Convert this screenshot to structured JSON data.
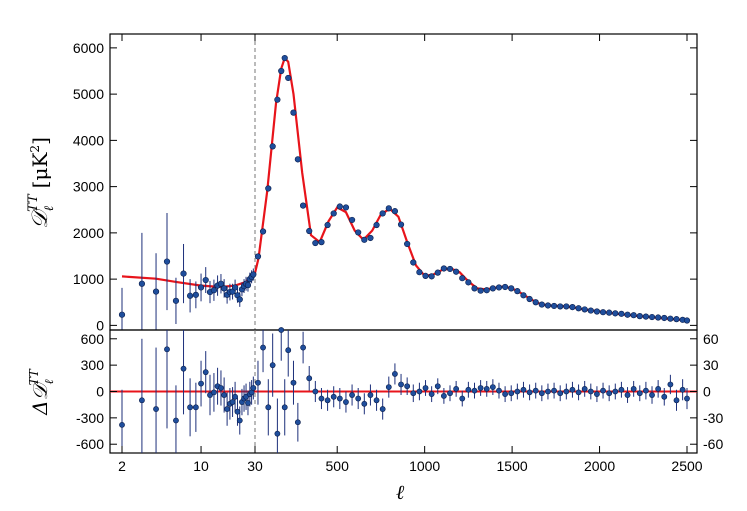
{
  "chart_data": {
    "type": "scatter",
    "top_panel": {
      "ylabel": "𝒟ℓTT [μK²]",
      "ylabel_main": "𝒟",
      "ylabel_sub": "ℓ",
      "ylabel_sup": "TT",
      "ylabel_unit": "[μK",
      "ylabel_unit_sup": "2",
      "ylabel_unit_close": "]",
      "ylim": [
        -100,
        6300
      ],
      "yticks": [
        0,
        1000,
        2000,
        3000,
        4000,
        5000,
        6000
      ],
      "ytick_labels": [
        "0",
        "1000",
        "2000",
        "3000",
        "4000",
        "5000",
        "6000"
      ],
      "model_color": "#e8141b",
      "point_color": "#1f4e9c",
      "errorbar_color": "#1c2f7a",
      "model_x": [
        2,
        4,
        6,
        10,
        15,
        20,
        25,
        30,
        50,
        100,
        150,
        180,
        200,
        220,
        250,
        300,
        350,
        400,
        450,
        500,
        550,
        600,
        650,
        700,
        750,
        800,
        850,
        900,
        950,
        1000,
        1050,
        1100,
        1150,
        1200,
        1250,
        1300,
        1350,
        1400,
        1450,
        1500,
        1550,
        1600,
        1650,
        1700,
        1750,
        1800,
        1850,
        1900,
        2000,
        2100,
        2200,
        2300,
        2400,
        2500
      ],
      "model_y": [
        1060,
        1010,
        940,
        860,
        830,
        860,
        940,
        1130,
        1450,
        2900,
        4800,
        5550,
        5780,
        5700,
        5000,
        3300,
        1950,
        1800,
        2250,
        2550,
        2450,
        2050,
        1850,
        2050,
        2400,
        2520,
        2350,
        1800,
        1300,
        1070,
        1100,
        1200,
        1230,
        1150,
        950,
        800,
        780,
        810,
        840,
        800,
        700,
        580,
        480,
        430,
        420,
        410,
        390,
        350,
        300,
        250,
        210,
        175,
        140,
        110
      ],
      "points": [
        {
          "x": 2,
          "y": 230,
          "err": 580
        },
        {
          "x": 3,
          "y": 900,
          "err": 1100
        },
        {
          "x": 4,
          "y": 730,
          "err": 830
        },
        {
          "x": 5,
          "y": 1380,
          "err": 1050
        },
        {
          "x": 6,
          "y": 530,
          "err": 500
        },
        {
          "x": 7,
          "y": 1120,
          "err": 640
        },
        {
          "x": 8,
          "y": 640,
          "err": 360
        },
        {
          "x": 9,
          "y": 660,
          "err": 290
        },
        {
          "x": 10,
          "y": 820,
          "err": 300
        },
        {
          "x": 11,
          "y": 980,
          "err": 280
        },
        {
          "x": 12,
          "y": 720,
          "err": 240
        },
        {
          "x": 13,
          "y": 760,
          "err": 230
        },
        {
          "x": 14,
          "y": 860,
          "err": 220
        },
        {
          "x": 15,
          "y": 900,
          "err": 210
        },
        {
          "x": 16,
          "y": 800,
          "err": 200
        },
        {
          "x": 17,
          "y": 660,
          "err": 190
        },
        {
          "x": 18,
          "y": 720,
          "err": 180
        },
        {
          "x": 19,
          "y": 730,
          "err": 170
        },
        {
          "x": 20,
          "y": 820,
          "err": 170
        },
        {
          "x": 21,
          "y": 650,
          "err": 160
        },
        {
          "x": 22,
          "y": 560,
          "err": 160
        },
        {
          "x": 23,
          "y": 780,
          "err": 150
        },
        {
          "x": 24,
          "y": 850,
          "err": 150
        },
        {
          "x": 25,
          "y": 900,
          "err": 150
        },
        {
          "x": 26,
          "y": 870,
          "err": 140
        },
        {
          "x": 27,
          "y": 1000,
          "err": 140
        },
        {
          "x": 28,
          "y": 1050,
          "err": 140
        },
        {
          "x": 29,
          "y": 1100,
          "err": 130
        },
        {
          "x": 47,
          "y": 1490,
          "err": 60
        },
        {
          "x": 76,
          "y": 2030,
          "err": 60
        },
        {
          "x": 106,
          "y": 2960,
          "err": 60
        },
        {
          "x": 131,
          "y": 3870,
          "err": 60
        },
        {
          "x": 158,
          "y": 4880,
          "err": 60
        },
        {
          "x": 180,
          "y": 5500,
          "err": 60
        },
        {
          "x": 200,
          "y": 5780,
          "err": 60
        },
        {
          "x": 220,
          "y": 5350,
          "err": 60
        },
        {
          "x": 250,
          "y": 4600,
          "err": 60
        },
        {
          "x": 275,
          "y": 3590,
          "err": 60
        },
        {
          "x": 305,
          "y": 2590,
          "err": 50
        },
        {
          "x": 340,
          "y": 2040,
          "err": 40
        },
        {
          "x": 375,
          "y": 1780,
          "err": 40
        },
        {
          "x": 410,
          "y": 1800,
          "err": 40
        },
        {
          "x": 445,
          "y": 2170,
          "err": 40
        },
        {
          "x": 480,
          "y": 2420,
          "err": 40
        },
        {
          "x": 515,
          "y": 2570,
          "err": 40
        },
        {
          "x": 550,
          "y": 2550,
          "err": 40
        },
        {
          "x": 585,
          "y": 2280,
          "err": 40
        },
        {
          "x": 620,
          "y": 2010,
          "err": 40
        },
        {
          "x": 655,
          "y": 1850,
          "err": 40
        },
        {
          "x": 690,
          "y": 1890,
          "err": 40
        },
        {
          "x": 725,
          "y": 2170,
          "err": 40
        },
        {
          "x": 760,
          "y": 2420,
          "err": 40
        },
        {
          "x": 795,
          "y": 2530,
          "err": 40
        },
        {
          "x": 830,
          "y": 2470,
          "err": 40
        },
        {
          "x": 865,
          "y": 2180,
          "err": 40
        },
        {
          "x": 900,
          "y": 1760,
          "err": 40
        },
        {
          "x": 935,
          "y": 1360,
          "err": 40
        },
        {
          "x": 970,
          "y": 1150,
          "err": 40
        },
        {
          "x": 1005,
          "y": 1070,
          "err": 40
        },
        {
          "x": 1040,
          "y": 1060,
          "err": 40
        },
        {
          "x": 1075,
          "y": 1140,
          "err": 40
        },
        {
          "x": 1110,
          "y": 1230,
          "err": 40
        },
        {
          "x": 1145,
          "y": 1220,
          "err": 40
        },
        {
          "x": 1180,
          "y": 1160,
          "err": 40
        },
        {
          "x": 1215,
          "y": 1020,
          "err": 40
        },
        {
          "x": 1250,
          "y": 930,
          "err": 40
        },
        {
          "x": 1285,
          "y": 800,
          "err": 40
        },
        {
          "x": 1320,
          "y": 750,
          "err": 40
        },
        {
          "x": 1355,
          "y": 760,
          "err": 40
        },
        {
          "x": 1390,
          "y": 800,
          "err": 40
        },
        {
          "x": 1425,
          "y": 820,
          "err": 40
        },
        {
          "x": 1460,
          "y": 830,
          "err": 40
        },
        {
          "x": 1495,
          "y": 800,
          "err": 40
        },
        {
          "x": 1530,
          "y": 740,
          "err": 40
        },
        {
          "x": 1565,
          "y": 650,
          "err": 40
        },
        {
          "x": 1600,
          "y": 570,
          "err": 40
        },
        {
          "x": 1635,
          "y": 500,
          "err": 40
        },
        {
          "x": 1670,
          "y": 450,
          "err": 40
        },
        {
          "x": 1705,
          "y": 430,
          "err": 40
        },
        {
          "x": 1740,
          "y": 420,
          "err": 40
        },
        {
          "x": 1775,
          "y": 410,
          "err": 40
        },
        {
          "x": 1810,
          "y": 410,
          "err": 40
        },
        {
          "x": 1845,
          "y": 395,
          "err": 40
        },
        {
          "x": 1880,
          "y": 370,
          "err": 40
        },
        {
          "x": 1915,
          "y": 345,
          "err": 40
        },
        {
          "x": 1950,
          "y": 320,
          "err": 40
        },
        {
          "x": 1985,
          "y": 300,
          "err": 40
        },
        {
          "x": 2020,
          "y": 285,
          "err": 40
        },
        {
          "x": 2055,
          "y": 275,
          "err": 40
        },
        {
          "x": 2090,
          "y": 260,
          "err": 40
        },
        {
          "x": 2125,
          "y": 250,
          "err": 40
        },
        {
          "x": 2160,
          "y": 230,
          "err": 40
        },
        {
          "x": 2195,
          "y": 220,
          "err": 40
        },
        {
          "x": 2230,
          "y": 200,
          "err": 40
        },
        {
          "x": 2265,
          "y": 190,
          "err": 40
        },
        {
          "x": 2300,
          "y": 180,
          "err": 40
        },
        {
          "x": 2335,
          "y": 170,
          "err": 40
        },
        {
          "x": 2370,
          "y": 160,
          "err": 40
        },
        {
          "x": 2405,
          "y": 145,
          "err": 40
        },
        {
          "x": 2440,
          "y": 135,
          "err": 40
        },
        {
          "x": 2475,
          "y": 120,
          "err": 40
        },
        {
          "x": 2500,
          "y": 105,
          "err": 40
        }
      ]
    },
    "bottom_panel": {
      "ylabel": "Δ𝒟ℓTT",
      "ylabel_main": "Δ𝒟",
      "ylabel_sub": "ℓ",
      "ylabel_sup": "TT",
      "left_ylim": [
        -700,
        700
      ],
      "left_yticks": [
        -600,
        -300,
        0,
        300,
        600
      ],
      "left_ytick_labels": [
        "-600",
        "-300",
        "0",
        "300",
        "600"
      ],
      "right_ylim": [
        -70,
        70
      ],
      "right_yticks": [
        -60,
        -30,
        0,
        30,
        60
      ],
      "right_ytick_labels": [
        "-60",
        "-30",
        "0",
        "30",
        "60"
      ],
      "residual_scale_change_at_x": 30,
      "points": [
        {
          "x": 2,
          "y": -380,
          "err": 400
        },
        {
          "x": 3,
          "y": -100,
          "err": 700
        },
        {
          "x": 4,
          "y": -200,
          "err": 700
        },
        {
          "x": 5,
          "y": 480,
          "err": 900
        },
        {
          "x": 6,
          "y": -330,
          "err": 400
        },
        {
          "x": 7,
          "y": 260,
          "err": 520
        },
        {
          "x": 8,
          "y": -180,
          "err": 330
        },
        {
          "x": 9,
          "y": -180,
          "err": 280
        },
        {
          "x": 10,
          "y": 90,
          "err": 260
        },
        {
          "x": 11,
          "y": 220,
          "err": 240
        },
        {
          "x": 12,
          "y": -40,
          "err": 230
        },
        {
          "x": 13,
          "y": -10,
          "err": 220
        },
        {
          "x": 14,
          "y": 60,
          "err": 210
        },
        {
          "x": 15,
          "y": 40,
          "err": 200
        },
        {
          "x": 16,
          "y": -40,
          "err": 200
        },
        {
          "x": 17,
          "y": -200,
          "err": 190
        },
        {
          "x": 18,
          "y": -140,
          "err": 180
        },
        {
          "x": 19,
          "y": -120,
          "err": 170
        },
        {
          "x": 20,
          "y": -60,
          "err": 170
        },
        {
          "x": 21,
          "y": -230,
          "err": 160
        },
        {
          "x": 22,
          "y": -330,
          "err": 160
        },
        {
          "x": 23,
          "y": -120,
          "err": 150
        },
        {
          "x": 24,
          "y": -80,
          "err": 150
        },
        {
          "x": 25,
          "y": -60,
          "err": 150
        },
        {
          "x": 26,
          "y": -130,
          "err": 140
        },
        {
          "x": 27,
          "y": -30,
          "err": 140
        },
        {
          "x": 28,
          "y": -10,
          "err": 140
        },
        {
          "x": 29,
          "y": 40,
          "err": 130
        }
      ],
      "points_high_ell": [
        {
          "x": 47,
          "y": 10,
          "err": 25
        },
        {
          "x": 76,
          "y": 50,
          "err": 28
        },
        {
          "x": 106,
          "y": -18,
          "err": 32
        },
        {
          "x": 131,
          "y": 30,
          "err": 36
        },
        {
          "x": 158,
          "y": -48,
          "err": 40
        },
        {
          "x": 180,
          "y": 70,
          "err": 35
        },
        {
          "x": 200,
          "y": -18,
          "err": 32
        },
        {
          "x": 220,
          "y": 47,
          "err": 30
        },
        {
          "x": 250,
          "y": 10,
          "err": 25
        },
        {
          "x": 275,
          "y": -35,
          "err": 22
        },
        {
          "x": 305,
          "y": 50,
          "err": 18
        },
        {
          "x": 340,
          "y": 15,
          "err": 14
        },
        {
          "x": 375,
          "y": 0,
          "err": 12
        },
        {
          "x": 410,
          "y": -8,
          "err": 12
        },
        {
          "x": 445,
          "y": -10,
          "err": 12
        },
        {
          "x": 480,
          "y": -6,
          "err": 12
        },
        {
          "x": 515,
          "y": -8,
          "err": 12
        },
        {
          "x": 550,
          "y": -12,
          "err": 12
        },
        {
          "x": 585,
          "y": -4,
          "err": 12
        },
        {
          "x": 620,
          "y": -8,
          "err": 12
        },
        {
          "x": 655,
          "y": -14,
          "err": 12
        },
        {
          "x": 690,
          "y": -4,
          "err": 12
        },
        {
          "x": 725,
          "y": -10,
          "err": 12
        },
        {
          "x": 760,
          "y": -20,
          "err": 12
        },
        {
          "x": 795,
          "y": 5,
          "err": 12
        },
        {
          "x": 830,
          "y": 20,
          "err": 12
        },
        {
          "x": 865,
          "y": 8,
          "err": 12
        },
        {
          "x": 900,
          "y": 6,
          "err": 10
        },
        {
          "x": 935,
          "y": -2,
          "err": 10
        },
        {
          "x": 970,
          "y": 0,
          "err": 10
        },
        {
          "x": 1005,
          "y": 4,
          "err": 9
        },
        {
          "x": 1040,
          "y": -3,
          "err": 9
        },
        {
          "x": 1075,
          "y": 6,
          "err": 9
        },
        {
          "x": 1110,
          "y": -5,
          "err": 9
        },
        {
          "x": 1145,
          "y": -2,
          "err": 9
        },
        {
          "x": 1180,
          "y": 3,
          "err": 9
        },
        {
          "x": 1215,
          "y": -8,
          "err": 9
        },
        {
          "x": 1250,
          "y": 2,
          "err": 9
        },
        {
          "x": 1285,
          "y": 1,
          "err": 9
        },
        {
          "x": 1320,
          "y": 4,
          "err": 9
        },
        {
          "x": 1355,
          "y": 3,
          "err": 9
        },
        {
          "x": 1390,
          "y": 5,
          "err": 9
        },
        {
          "x": 1425,
          "y": 1,
          "err": 9
        },
        {
          "x": 1460,
          "y": -3,
          "err": 9
        },
        {
          "x": 1495,
          "y": -2,
          "err": 9
        },
        {
          "x": 1530,
          "y": 0,
          "err": 9
        },
        {
          "x": 1565,
          "y": 2,
          "err": 9
        },
        {
          "x": 1600,
          "y": -1,
          "err": 9
        },
        {
          "x": 1635,
          "y": 1,
          "err": 9
        },
        {
          "x": 1670,
          "y": -2,
          "err": 9
        },
        {
          "x": 1705,
          "y": 0,
          "err": 9
        },
        {
          "x": 1740,
          "y": 1,
          "err": 9
        },
        {
          "x": 1775,
          "y": -2,
          "err": 9
        },
        {
          "x": 1810,
          "y": 0,
          "err": 9
        },
        {
          "x": 1845,
          "y": 2,
          "err": 9
        },
        {
          "x": 1880,
          "y": -1,
          "err": 9
        },
        {
          "x": 1915,
          "y": 3,
          "err": 9
        },
        {
          "x": 1950,
          "y": 0,
          "err": 9
        },
        {
          "x": 1985,
          "y": -3,
          "err": 9
        },
        {
          "x": 2020,
          "y": 1,
          "err": 9
        },
        {
          "x": 2055,
          "y": -2,
          "err": 9
        },
        {
          "x": 2090,
          "y": 0,
          "err": 9
        },
        {
          "x": 2125,
          "y": 2,
          "err": 9
        },
        {
          "x": 2160,
          "y": -4,
          "err": 9
        },
        {
          "x": 2195,
          "y": 3,
          "err": 9
        },
        {
          "x": 2230,
          "y": -2,
          "err": 9
        },
        {
          "x": 2265,
          "y": 1,
          "err": 10
        },
        {
          "x": 2300,
          "y": -4,
          "err": 10
        },
        {
          "x": 2335,
          "y": 3,
          "err": 10
        },
        {
          "x": 2370,
          "y": -6,
          "err": 10
        },
        {
          "x": 2405,
          "y": 8,
          "err": 11
        },
        {
          "x": 2440,
          "y": -10,
          "err": 12
        },
        {
          "x": 2475,
          "y": 2,
          "err": 12
        },
        {
          "x": 2500,
          "y": -8,
          "err": 12
        }
      ]
    },
    "x_axis": {
      "label": "ℓ",
      "scale": "log for ℓ < 30, linear for ℓ ≥ 30",
      "split_at": 30,
      "ticks": [
        2,
        10,
        30,
        500,
        1000,
        1500,
        2000,
        2500
      ],
      "tick_labels": [
        "2",
        "10",
        "30",
        "500",
        "1000",
        "1500",
        "2000",
        "2500"
      ],
      "xlim": [
        2,
        2500
      ]
    }
  }
}
